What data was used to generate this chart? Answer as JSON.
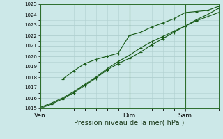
{
  "xlabel": "Pression niveau de la mer( hPa )",
  "ylim": [
    1015,
    1025
  ],
  "yticks": [
    1015,
    1016,
    1017,
    1018,
    1019,
    1020,
    1021,
    1022,
    1023,
    1024,
    1025
  ],
  "bg_color": "#cce8e8",
  "grid_color": "#b0d0d0",
  "line_color": "#1a5c1a",
  "xtick_labels": [
    "Ven",
    "Dim",
    "Sam"
  ],
  "xtick_positions": [
    0.0,
    0.5,
    0.8125
  ],
  "vline_positions": [
    0.0,
    0.5,
    0.8125
  ],
  "x_total": 1.0,
  "line1_x": [
    0.0,
    0.0625,
    0.125,
    0.1875,
    0.25,
    0.3125,
    0.375,
    0.4375,
    0.5,
    0.5625,
    0.625,
    0.6875,
    0.75,
    0.8125,
    0.875,
    0.9375,
    1.0
  ],
  "line1_y": [
    1015.1,
    1015.5,
    1016.0,
    1016.6,
    1017.3,
    1018.0,
    1018.8,
    1019.5,
    1020.1,
    1020.8,
    1021.4,
    1021.9,
    1022.4,
    1022.9,
    1023.4,
    1023.8,
    1024.2
  ],
  "line2_x": [
    0.125,
    0.1875,
    0.25,
    0.3125,
    0.375,
    0.4375,
    0.5,
    0.5625,
    0.625,
    0.6875,
    0.75,
    0.8125,
    0.875,
    0.9375,
    1.0
  ],
  "line2_y": [
    1017.8,
    1018.6,
    1019.3,
    1019.7,
    1020.0,
    1020.3,
    1022.0,
    1022.3,
    1022.8,
    1023.2,
    1023.6,
    1024.2,
    1024.3,
    1024.4,
    1024.8
  ],
  "line3_x": [
    0.0,
    0.0625,
    0.125,
    0.1875,
    0.25,
    0.3125,
    0.375,
    0.4375,
    0.5,
    0.5625,
    0.625,
    0.6875,
    0.75,
    0.8125,
    0.875,
    0.9375,
    1.0
  ],
  "line3_y": [
    1015.0,
    1015.4,
    1015.9,
    1016.5,
    1017.2,
    1017.9,
    1018.7,
    1019.3,
    1019.8,
    1020.4,
    1021.1,
    1021.7,
    1022.3,
    1022.9,
    1023.5,
    1024.0,
    1024.6
  ],
  "ylabel_fontsize": 5.0,
  "xlabel_fontsize": 7.0,
  "xtick_fontsize": 6.5
}
